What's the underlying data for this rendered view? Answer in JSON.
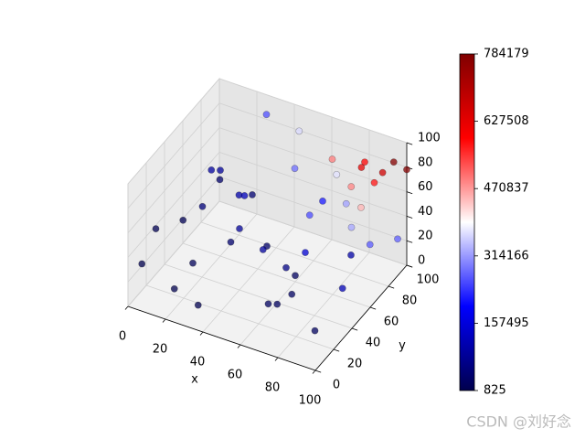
{
  "chart_data": {
    "type": "scatter3d",
    "xlabel": "x",
    "ylabel": "y",
    "xlim": [
      0,
      100
    ],
    "ylim": [
      0,
      100
    ],
    "zlim": [
      0,
      100
    ],
    "xticks": [
      0,
      20,
      40,
      60,
      80,
      100
    ],
    "yticks": [
      0,
      20,
      40,
      60,
      80,
      100
    ],
    "zticks": [
      0,
      20,
      40,
      60,
      80,
      100
    ],
    "colormap": "seismic",
    "clim": [
      825,
      784179
    ],
    "cticks": [
      825,
      157495,
      314166,
      470837,
      627508,
      784179
    ],
    "x": [
      95,
      92,
      90,
      80,
      85,
      70,
      90,
      75,
      60,
      50,
      30,
      95,
      80,
      60,
      40,
      20,
      10,
      30,
      70,
      90,
      50,
      20,
      10,
      5,
      40,
      60,
      80,
      95,
      100,
      65,
      45,
      25,
      15,
      35,
      85,
      55,
      75,
      100,
      88,
      5,
      30,
      50,
      65,
      20,
      100
    ],
    "y": [
      96,
      90,
      85,
      95,
      70,
      80,
      60,
      85,
      90,
      80,
      90,
      40,
      30,
      50,
      40,
      60,
      80,
      20,
      10,
      20,
      10,
      30,
      10,
      50,
      70,
      60,
      80,
      70,
      90,
      95,
      95,
      40,
      20,
      5,
      5,
      35,
      45,
      50,
      75,
      5,
      60,
      25,
      30,
      95,
      100
    ],
    "z": [
      85,
      80,
      75,
      78,
      82,
      88,
      60,
      50,
      40,
      70,
      95,
      30,
      60,
      20,
      50,
      70,
      40,
      80,
      30,
      10,
      70,
      20,
      60,
      30,
      10,
      5,
      15,
      40,
      30,
      60,
      85,
      90,
      5,
      15,
      50,
      45,
      75,
      90,
      95,
      33,
      55,
      95,
      10,
      20,
      78
    ],
    "c": [
      775200,
      662400,
      573750,
      592800,
      487900,
      492800,
      324000,
      318750,
      216000,
      280000,
      256500,
      114000,
      144000,
      60000,
      80000,
      84000,
      32000,
      48000,
      21000,
      18000,
      35000,
      12000,
      6000,
      7500,
      28000,
      18000,
      96000,
      266000,
      270000,
      370500,
      363375,
      90000,
      1500,
      2625,
      21250,
      86625,
      253125,
      450000,
      627000,
      825,
      99000,
      118750,
      19500,
      38000,
      780000
    ]
  },
  "watermark": "CSDN @刘好念"
}
